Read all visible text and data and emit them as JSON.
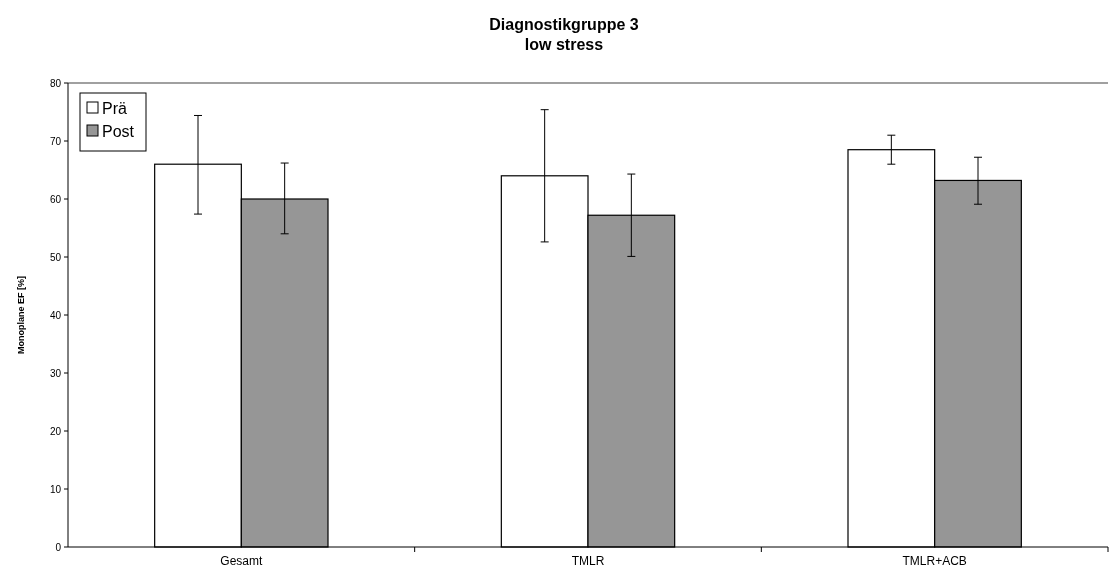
{
  "chart_data": {
    "type": "bar",
    "title": "Diagnostikgruppe 3",
    "subtitle": "low stress",
    "ylabel": "Monoplane EF [%]",
    "categories": [
      "Gesamt",
      "TMLR",
      "TMLR+ACB"
    ],
    "series": [
      {
        "name": "Prä",
        "color": "#ffffff",
        "values": [
          66,
          64,
          68.5
        ],
        "errors": [
          [
            57.4,
            74.4
          ],
          [
            52.6,
            75.4
          ],
          [
            66,
            71
          ]
        ]
      },
      {
        "name": "Post",
        "color": "#969696",
        "values": [
          60,
          57.2,
          63.2
        ],
        "errors": [
          [
            54,
            66.2
          ],
          [
            50.1,
            64.3
          ],
          [
            59.1,
            67.2
          ]
        ]
      }
    ],
    "ylim": [
      0,
      80
    ],
    "yticks": [
      0,
      10,
      20,
      30,
      40,
      50,
      60,
      70,
      80
    ],
    "legend": "top left",
    "grid": false
  }
}
